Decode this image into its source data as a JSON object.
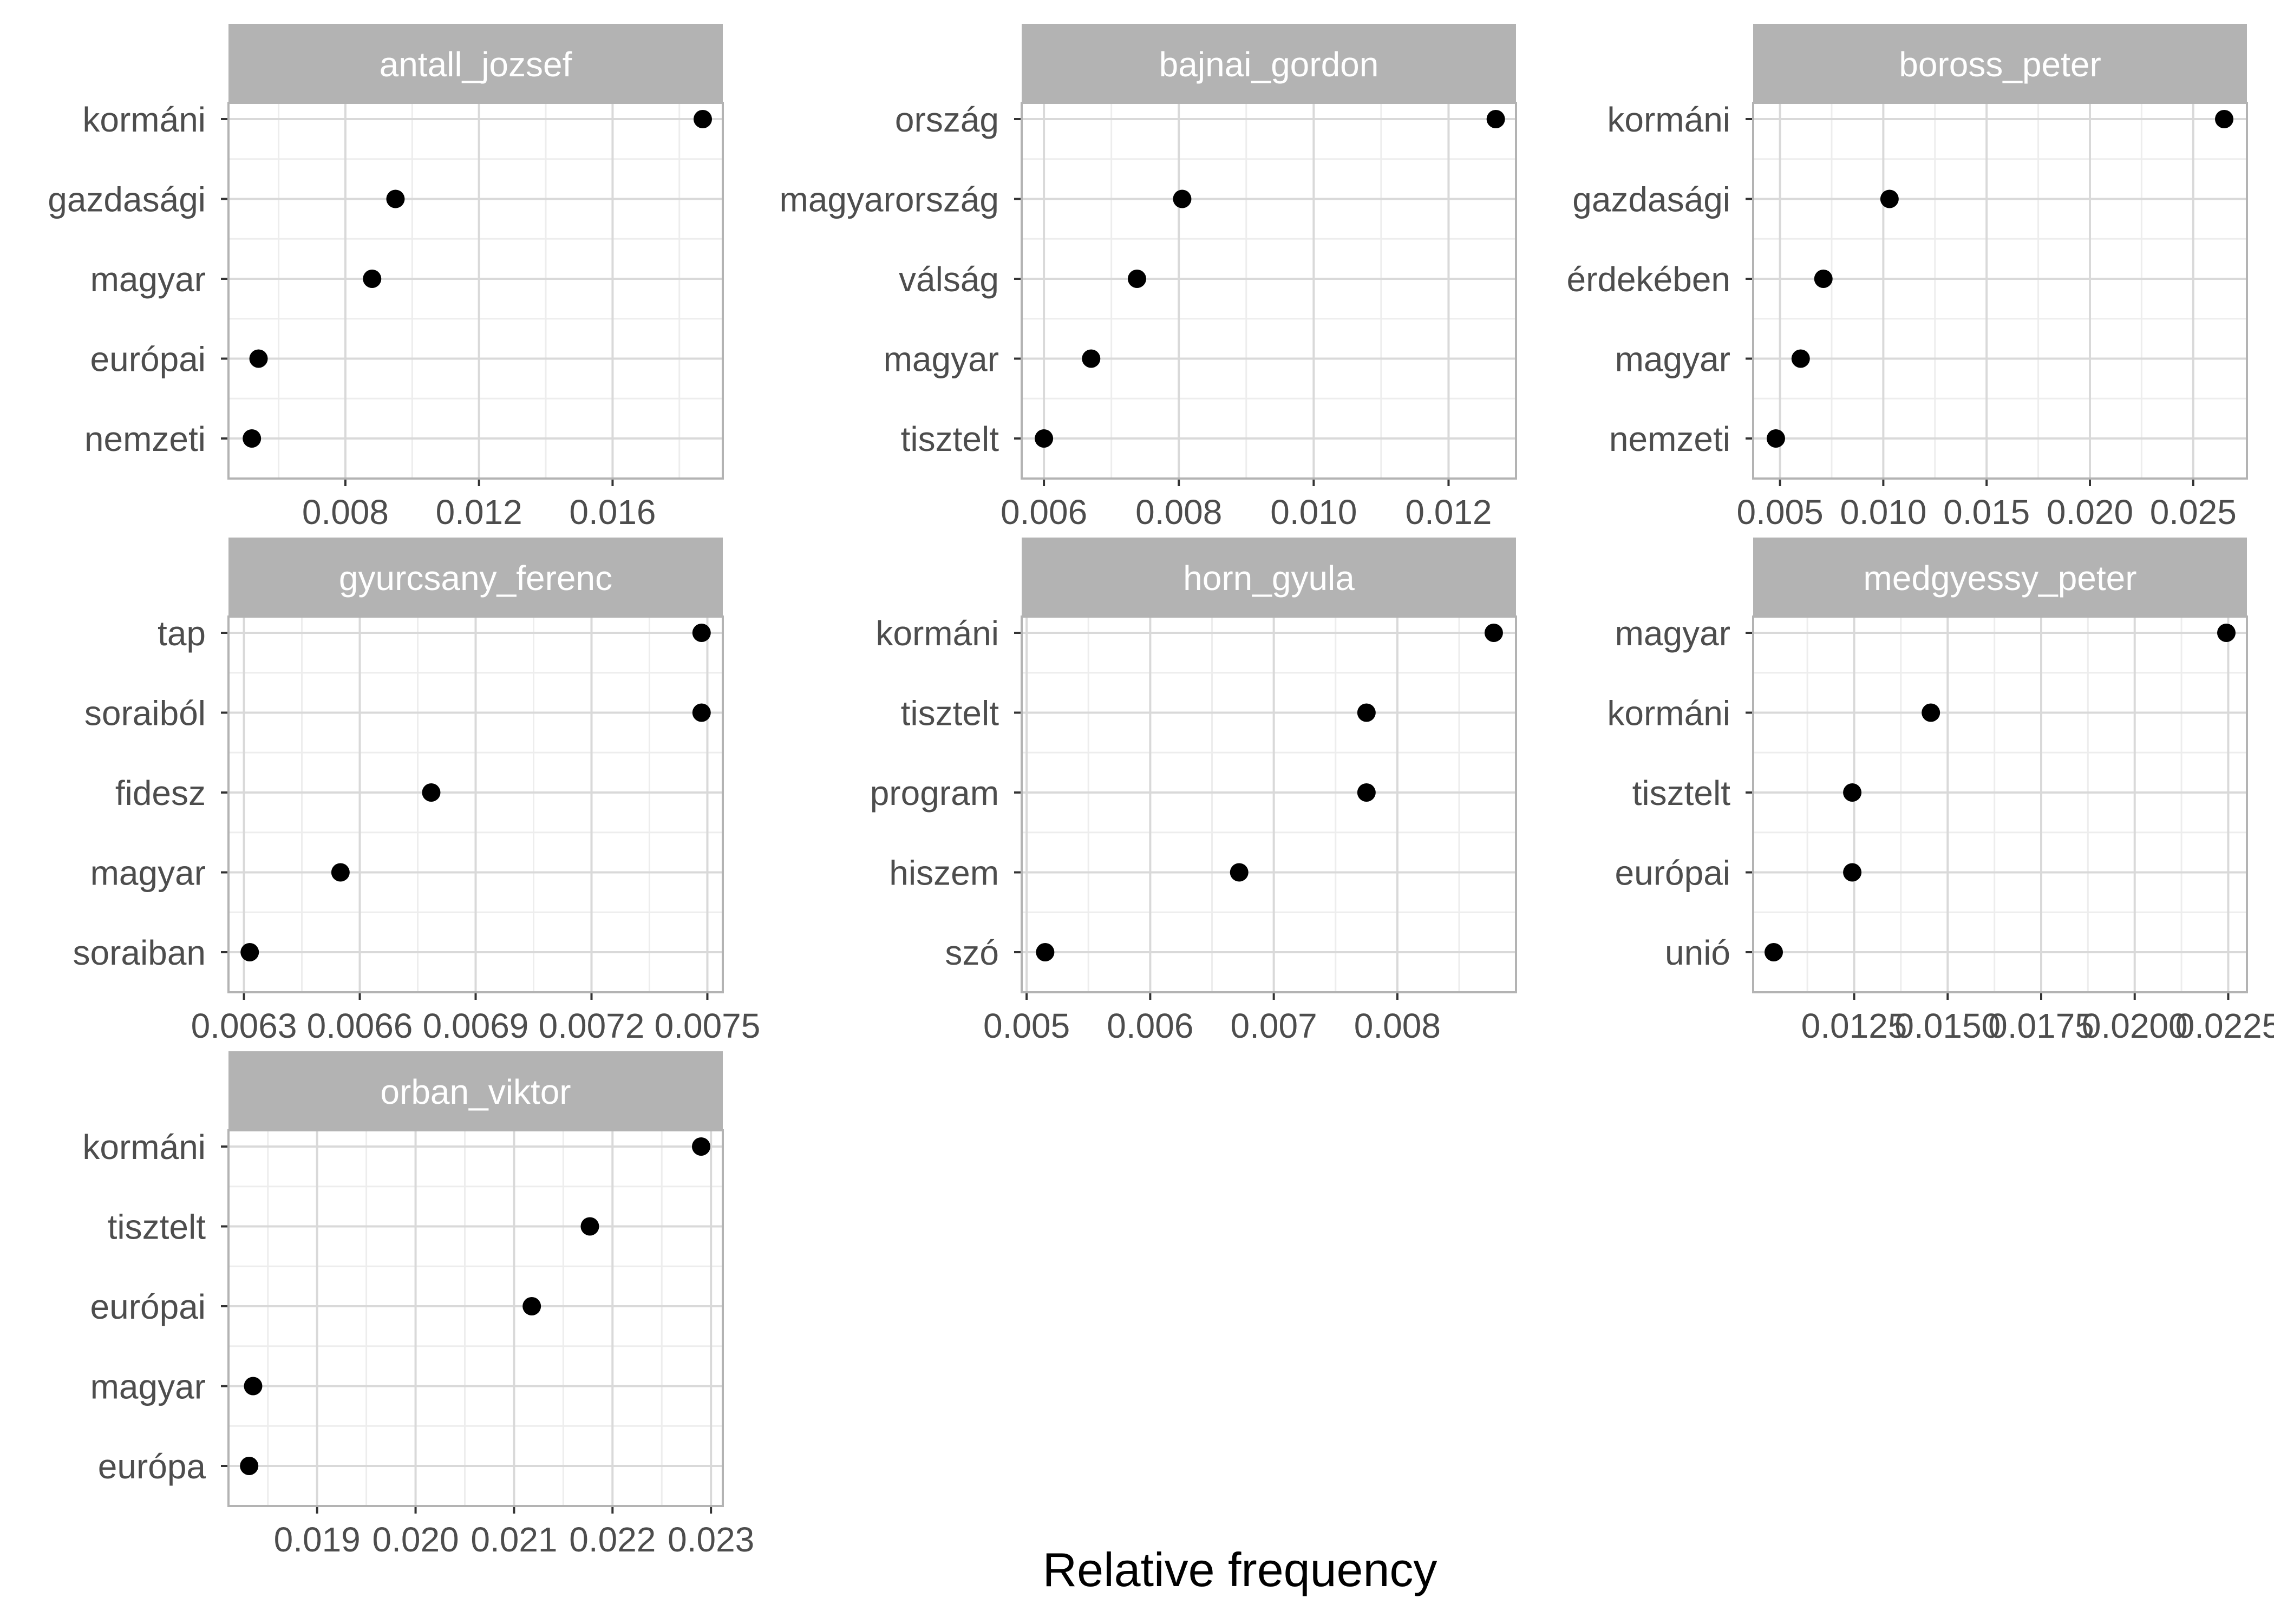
{
  "colors": {
    "strip_bg": "#b3b3b3",
    "strip_text": "#ffffff",
    "panel_border": "#b3b3b3",
    "grid_major": "#d9d9d9",
    "grid_minor": "#ededed",
    "point": "#000000",
    "tick_label": "#4d4d4d",
    "axis_title": "#000000"
  },
  "chart_data": {
    "type": "scatter",
    "style": "faceted dot plot (3 columns), free scales",
    "xlabel": "Relative frequency",
    "ylabel": "",
    "grid": true,
    "facets": [
      {
        "name": "antall_jozsef",
        "categories": [
          "kormáni",
          "gazdasági",
          "magyar",
          "európai",
          "nemzeti"
        ],
        "values": [
          0.0187,
          0.0095,
          0.0088,
          0.0054,
          0.0052
        ],
        "xlim": [
          0.0045,
          0.0193
        ],
        "xticks": [
          0.008,
          0.012,
          0.016
        ],
        "xtick_labels": [
          "0.008",
          "0.012",
          "0.016"
        ],
        "minor_xticks": [
          0.006,
          0.01,
          0.014,
          0.018
        ]
      },
      {
        "name": "bajnai_gordon",
        "categories": [
          "ország",
          "magyarország",
          "válság",
          "magyar",
          "tisztelt"
        ],
        "values": [
          0.0127,
          0.00805,
          0.00738,
          0.0067,
          0.006
        ],
        "xlim": [
          0.00567,
          0.013
        ],
        "xticks": [
          0.006,
          0.008,
          0.01,
          0.012
        ],
        "xtick_labels": [
          "0.006",
          "0.008",
          "0.010",
          "0.012"
        ],
        "minor_xticks": [
          0.007,
          0.009,
          0.011
        ]
      },
      {
        "name": "boross_peter",
        "categories": [
          "kormáni",
          "gazdasági",
          "érdekében",
          "magyar",
          "nemzeti"
        ],
        "values": [
          0.0265,
          0.0103,
          0.0071,
          0.006,
          0.0048
        ],
        "xlim": [
          0.0037,
          0.0276
        ],
        "xticks": [
          0.005,
          0.01,
          0.015,
          0.02,
          0.025
        ],
        "xtick_labels": [
          "0.005",
          "0.010",
          "0.015",
          "0.020",
          "0.025"
        ],
        "minor_xticks": [
          0.0075,
          0.0125,
          0.0175,
          0.0225
        ]
      },
      {
        "name": "gyurcsany_ferenc",
        "categories": [
          "tap",
          "soraiból",
          "fidesz",
          "magyar",
          "soraiban"
        ],
        "values": [
          0.007485,
          0.007485,
          0.006785,
          0.00655,
          0.006315
        ],
        "xlim": [
          0.00626,
          0.00754
        ],
        "xticks": [
          0.0063,
          0.0066,
          0.0069,
          0.0072,
          0.0075
        ],
        "xtick_labels": [
          "0.0063",
          "0.0066",
          "0.0069",
          "0.0072",
          "0.0075"
        ],
        "minor_xticks": [
          0.00645,
          0.00675,
          0.00705,
          0.00735
        ]
      },
      {
        "name": "horn_gyula",
        "categories": [
          "kormáni",
          "tisztelt",
          "program",
          "hiszem",
          "szó"
        ],
        "values": [
          0.00878,
          0.00775,
          0.00775,
          0.00672,
          0.00515
        ],
        "xlim": [
          0.00496,
          0.00896
        ],
        "xticks": [
          0.005,
          0.006,
          0.007,
          0.008
        ],
        "xtick_labels": [
          "0.005",
          "0.006",
          "0.007",
          "0.008"
        ],
        "minor_xticks": [
          0.0055,
          0.0065,
          0.0075,
          0.0085
        ]
      },
      {
        "name": "medgyessy_peter",
        "categories": [
          "magyar",
          "kormáni",
          "tisztelt",
          "európai",
          "unió"
        ],
        "values": [
          0.02245,
          0.01455,
          0.01245,
          0.01245,
          0.01035
        ],
        "xlim": [
          0.0098,
          0.023
        ],
        "xticks": [
          0.0125,
          0.015,
          0.0175,
          0.02,
          0.0225
        ],
        "xtick_labels": [
          "0.0125",
          "0.0150",
          "0.0175",
          "0.0200",
          "0.0225"
        ],
        "minor_xticks": [
          0.01125,
          0.01375,
          0.01625,
          0.01875,
          0.02125
        ]
      },
      {
        "name": "orban_viktor",
        "categories": [
          "kormáni",
          "tisztelt",
          "európai",
          "magyar",
          "európa"
        ],
        "values": [
          0.0229,
          0.02177,
          0.02118,
          0.01835,
          0.01831
        ],
        "xlim": [
          0.0181,
          0.02312
        ],
        "xticks": [
          0.019,
          0.02,
          0.021,
          0.022,
          0.023
        ],
        "xtick_labels": [
          "0.019",
          "0.020",
          "0.021",
          "0.022",
          "0.023"
        ],
        "minor_xticks": [
          0.0185,
          0.0195,
          0.0205,
          0.0215,
          0.0225
        ]
      }
    ]
  }
}
